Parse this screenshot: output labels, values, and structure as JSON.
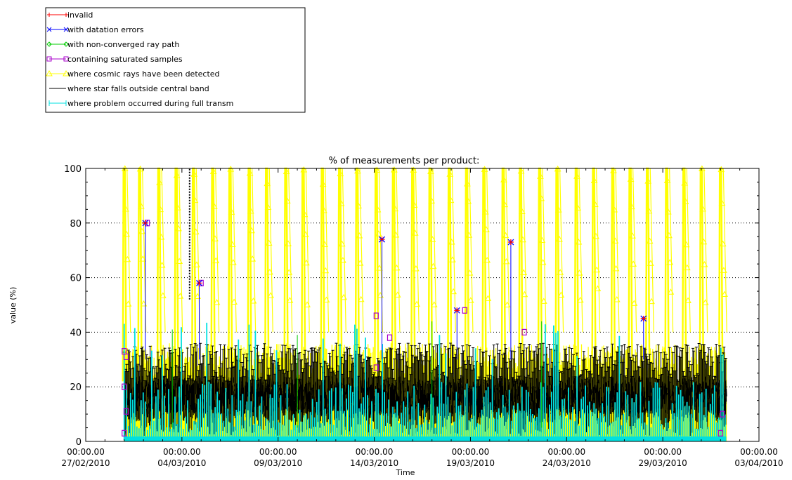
{
  "chart_data": {
    "type": "line",
    "title": "% of measurements per product:",
    "xlabel": "Time",
    "ylabel": "value (%)",
    "ylim": [
      0,
      100
    ],
    "yticks": [
      0,
      20,
      40,
      60,
      80,
      100
    ],
    "xlim": [
      "2010-02-27",
      "2010-04-03"
    ],
    "xticks": [
      {
        "time": "00:00.00",
        "date": "27/02/2010",
        "day": 0
      },
      {
        "time": "00:00.00",
        "date": "04/03/2010",
        "day": 5
      },
      {
        "time": "00:00.00",
        "date": "09/03/2010",
        "day": 10
      },
      {
        "time": "00:00.00",
        "date": "14/03/2010",
        "day": 15
      },
      {
        "time": "00:00.00",
        "date": "19/03/2010",
        "day": 20
      },
      {
        "time": "00:00.00",
        "date": "24/03/2010",
        "day": 25
      },
      {
        "time": "00:00.00",
        "date": "29/03/2010",
        "day": 30
      },
      {
        "time": "00:00.00",
        "date": "03/04/2010",
        "day": 35
      }
    ],
    "grid": "horizontal-dotted",
    "legend_position": "top-left",
    "series": [
      {
        "name": "invalid",
        "color": "#ff0000",
        "marker": "plus"
      },
      {
        "name": "with datation errors",
        "color": "#0000ff",
        "marker": "x"
      },
      {
        "name": "with non-converged ray path",
        "color": "#00cc00",
        "marker": "diamond"
      },
      {
        "name": "containing saturated samples",
        "color": "#aa00cc",
        "marker": "square"
      },
      {
        "name": "where cosmic rays have been detected",
        "color": "#ffff00",
        "marker": "triangle"
      },
      {
        "name": "where star falls outside central band",
        "color": "#000000",
        "marker": "none"
      },
      {
        "name": "where problem occurred during full transm",
        "color": "#00e0e0",
        "marker": "bar"
      }
    ],
    "data_range": {
      "start_day": 2.0,
      "end_day": 33.3
    },
    "yellow_spike_days": [
      2.0,
      2.8,
      3.8,
      4.7,
      5.6,
      6.6,
      7.5,
      8.5,
      9.4,
      10.4,
      11.3,
      12.3,
      13.2,
      14.1,
      15.1,
      16.0,
      17.0,
      17.9,
      18.9,
      19.8,
      20.7,
      21.7,
      22.6,
      23.6,
      24.5,
      25.5,
      26.4,
      27.4,
      28.3,
      29.2,
      30.2,
      31.1,
      32.0,
      33.0
    ],
    "datation_spikes": [
      {
        "day": 3.1,
        "value": 80
      },
      {
        "day": 5.9,
        "value": 58
      },
      {
        "day": 15.4,
        "value": 74
      },
      {
        "day": 19.3,
        "value": 48
      },
      {
        "day": 22.1,
        "value": 73
      },
      {
        "day": 29.0,
        "value": 45
      }
    ],
    "dotted_black_line": {
      "day": 5.4,
      "from": 52,
      "to": 100
    }
  }
}
